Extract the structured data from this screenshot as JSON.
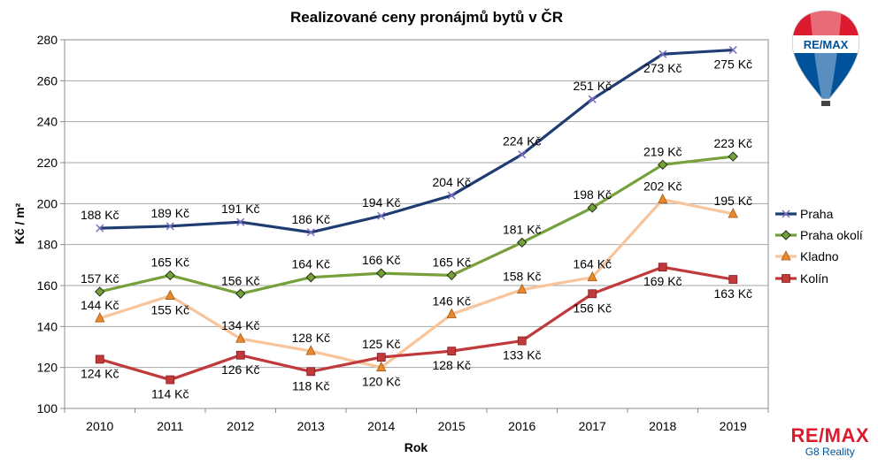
{
  "brand": {
    "balloon_text": "RE/MAX",
    "name": "RE/MAX",
    "office": "G8 Reality",
    "colors": {
      "red": "#dc1c2e",
      "blue": "#00529b"
    }
  },
  "chart_data": {
    "type": "line",
    "title": "Realizované ceny pronájmů bytů v ČR",
    "xlabel": "Rok",
    "ylabel": "Kč / m²",
    "ylim": [
      100,
      280
    ],
    "yticks": [
      100,
      120,
      140,
      160,
      180,
      200,
      220,
      240,
      260,
      280
    ],
    "grid": true,
    "legend_position": "right",
    "categories": [
      "2010",
      "2011",
      "2012",
      "2013",
      "2014",
      "2015",
      "2016",
      "2017",
      "2018",
      "2019"
    ],
    "series": [
      {
        "name": "Praha",
        "color": "#1f3d73",
        "marker": "x",
        "values": [
          188,
          189,
          191,
          186,
          194,
          204,
          224,
          251,
          273,
          275
        ],
        "labels": [
          "188 Kč",
          "189 Kč",
          "191 Kč",
          "186 Kč",
          "194 Kč",
          "204 Kč",
          "224 Kč",
          "251 Kč",
          "273 Kč",
          "275 Kč"
        ]
      },
      {
        "name": "Praha okolí",
        "color": "#76a03a",
        "marker": "diamond",
        "values": [
          157,
          165,
          156,
          164,
          166,
          165,
          181,
          198,
          219,
          223
        ],
        "labels": [
          "157 Kč",
          "165 Kč",
          "156 Kč",
          "164 Kč",
          "166 Kč",
          "165 Kč",
          "181 Kč",
          "198 Kč",
          "219 Kč",
          "223 Kč"
        ]
      },
      {
        "name": "Kladno",
        "color": "#f8c49b",
        "marker": "triangle",
        "values": [
          144,
          155,
          134,
          128,
          120,
          146,
          158,
          164,
          202,
          195
        ],
        "labels": [
          "144 Kč",
          "155 Kč",
          "134 Kč",
          "128 Kč",
          "120 Kč",
          "146 Kč",
          "158 Kč",
          "164 Kč",
          "202 Kč",
          "195 Kč"
        ]
      },
      {
        "name": "Kolín",
        "color": "#c0393b",
        "marker": "square",
        "values": [
          124,
          114,
          126,
          118,
          125,
          128,
          133,
          156,
          169,
          163
        ],
        "labels": [
          "124 Kč",
          "114 Kč",
          "126 Kč",
          "118 Kč",
          "125 Kč",
          "128 Kč",
          "133 Kč",
          "156 Kč",
          "169 Kč",
          "163 Kč"
        ]
      }
    ]
  }
}
